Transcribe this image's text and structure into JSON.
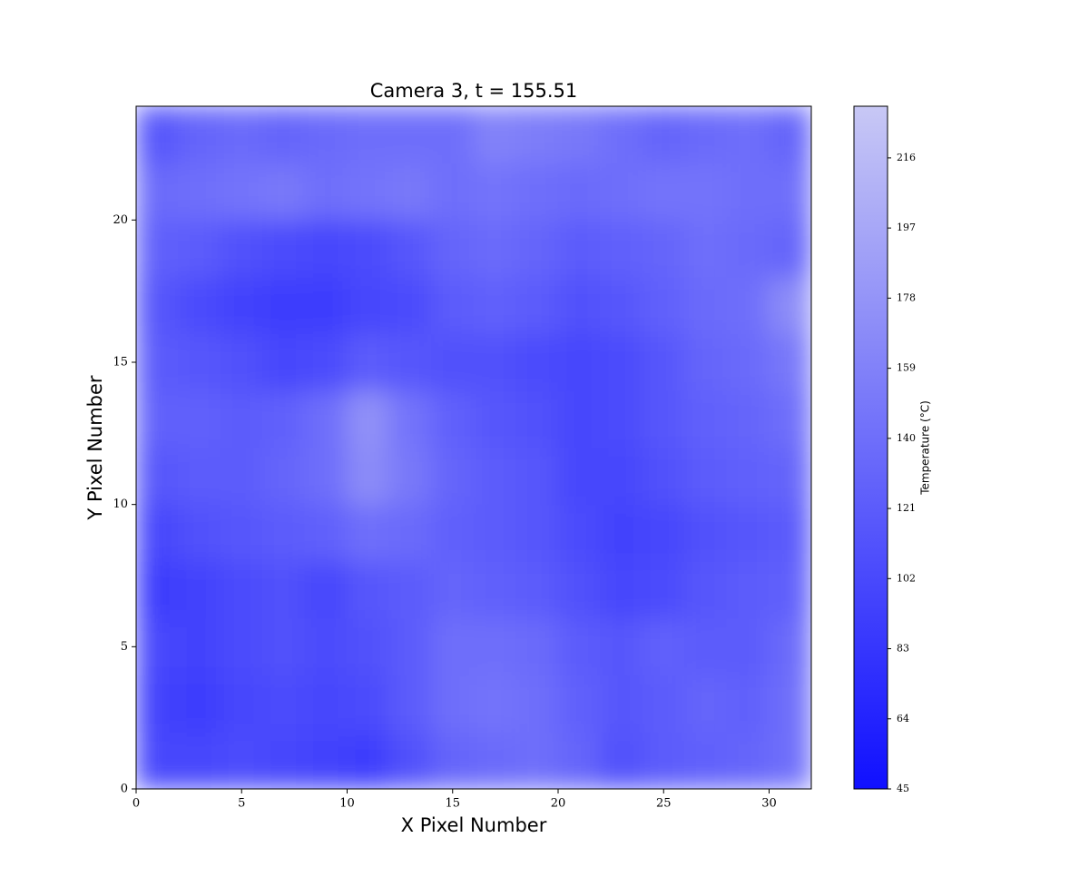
{
  "chart_data": {
    "type": "heatmap",
    "title": "Camera 3, t = 155.51",
    "xlabel": "X Pixel Number",
    "ylabel": "Y Pixel Number",
    "xlim": [
      0,
      32
    ],
    "ylim": [
      0,
      24
    ],
    "xticks": [
      0,
      5,
      10,
      15,
      20,
      25,
      30
    ],
    "yticks": [
      0,
      5,
      10,
      15,
      20
    ],
    "values": [
      [
        100,
        100,
        105,
        100,
        95,
        90,
        110,
        130,
        135,
        140,
        130,
        110,
        120,
        125,
        130,
        140
      ],
      [
        95,
        90,
        100,
        105,
        100,
        105,
        120,
        140,
        145,
        140,
        125,
        115,
        120,
        130,
        125,
        140
      ],
      [
        100,
        95,
        105,
        110,
        105,
        110,
        120,
        140,
        140,
        135,
        120,
        115,
        125,
        120,
        120,
        135
      ],
      [
        90,
        95,
        105,
        110,
        100,
        115,
        120,
        130,
        125,
        120,
        110,
        100,
        105,
        115,
        120,
        125
      ],
      [
        100,
        110,
        115,
        120,
        125,
        140,
        135,
        125,
        120,
        115,
        105,
        95,
        100,
        110,
        115,
        120
      ],
      [
        115,
        120,
        120,
        130,
        140,
        170,
        150,
        130,
        120,
        115,
        100,
        100,
        110,
        120,
        125,
        130
      ],
      [
        125,
        125,
        120,
        125,
        140,
        175,
        145,
        125,
        115,
        110,
        100,
        105,
        115,
        125,
        130,
        140
      ],
      [
        120,
        115,
        110,
        100,
        105,
        120,
        115,
        110,
        110,
        105,
        100,
        105,
        115,
        130,
        135,
        150
      ],
      [
        115,
        105,
        95,
        90,
        90,
        100,
        105,
        120,
        125,
        120,
        110,
        115,
        125,
        135,
        140,
        170
      ],
      [
        125,
        120,
        110,
        105,
        100,
        105,
        115,
        130,
        135,
        130,
        120,
        125,
        130,
        140,
        135,
        130
      ],
      [
        135,
        140,
        145,
        150,
        140,
        145,
        150,
        140,
        145,
        140,
        135,
        140,
        145,
        145,
        140,
        140
      ],
      [
        115,
        130,
        135,
        130,
        135,
        140,
        140,
        140,
        160,
        155,
        150,
        140,
        130,
        135,
        140,
        130
      ]
    ],
    "colormap": [
      "#1010ff",
      "#c8c8f5"
    ],
    "clim": [
      45,
      230
    ],
    "cticks": [
      45,
      64,
      83,
      102,
      121,
      140,
      159,
      178,
      197,
      216
    ],
    "colorbar_label": "Temperature (°C)"
  }
}
